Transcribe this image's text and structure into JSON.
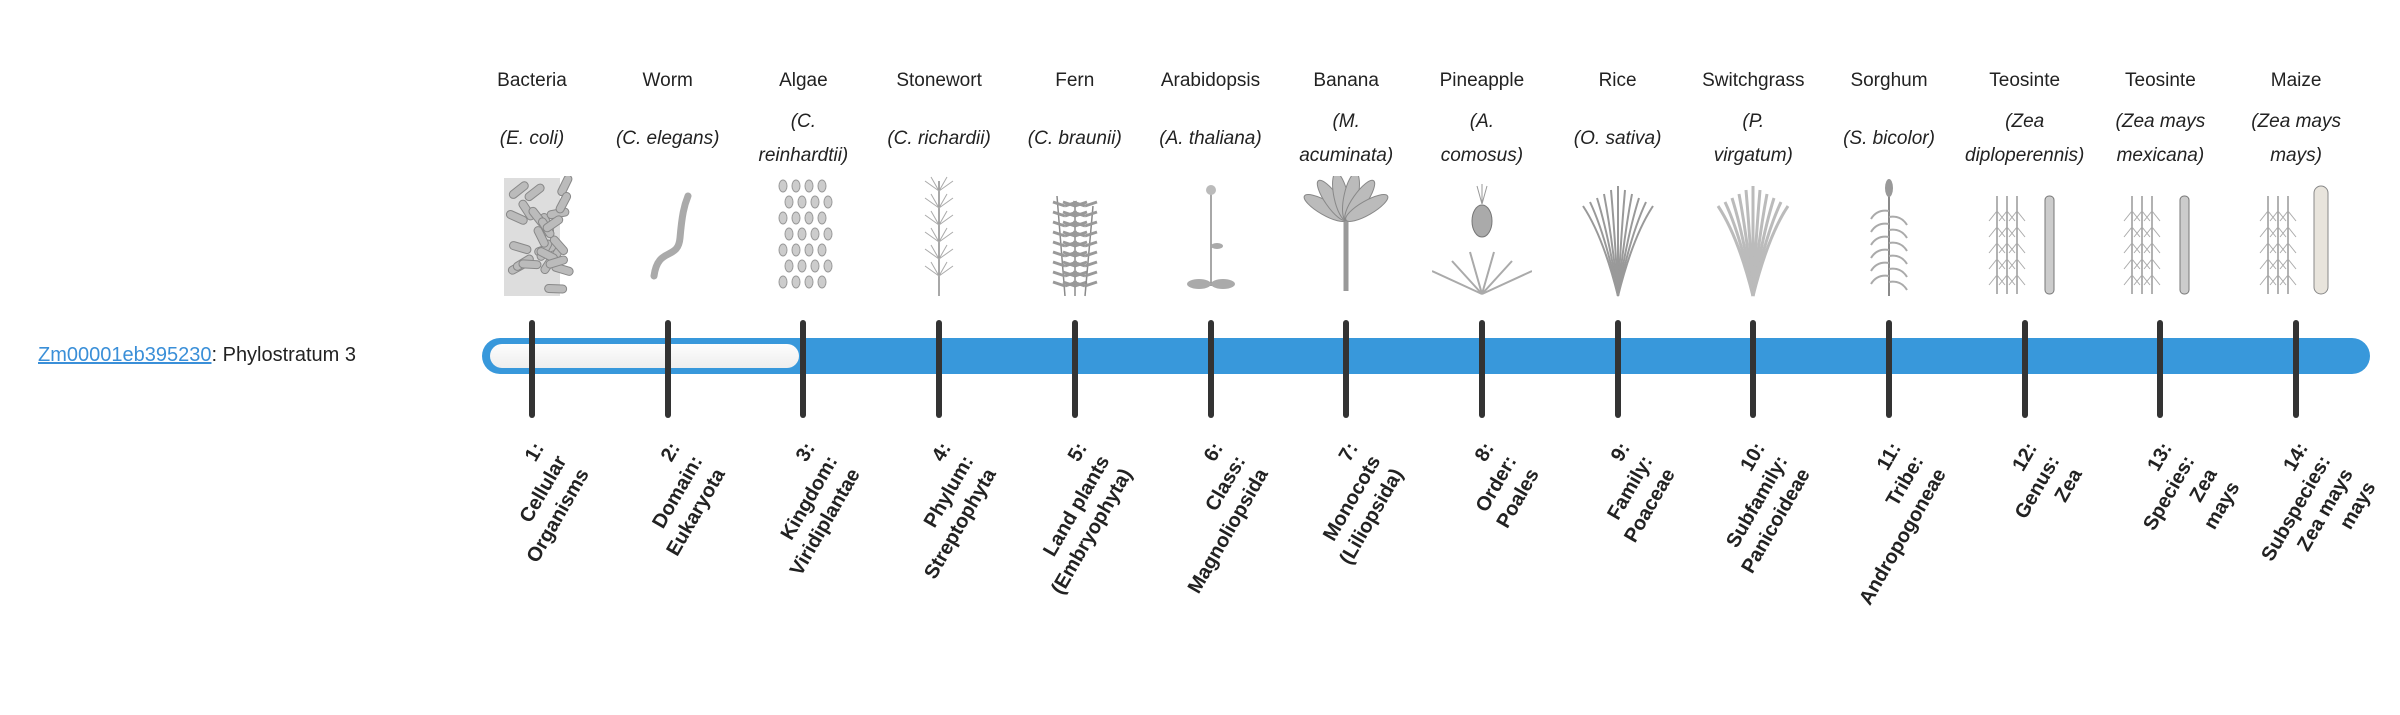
{
  "gene": {
    "id": "Zm00001eb395230",
    "suffix": ": Phylostratum 3"
  },
  "current_phylostratum": 3,
  "colors": {
    "bar": "#3898db",
    "track": "#f5f5f5",
    "tick": "#333333",
    "link": "#3a8fd8"
  },
  "organisms": [
    {
      "name": "Bacteria",
      "latin": [
        "(E. coli)"
      ],
      "icon": "bacteria-icon",
      "stratum": [
        "1:",
        "Cellular",
        "Organisms"
      ]
    },
    {
      "name": "Worm",
      "latin": [
        "(C. elegans)"
      ],
      "icon": "worm-icon",
      "stratum": [
        "2:",
        "Domain:",
        "Eukaryota"
      ]
    },
    {
      "name": "Algae",
      "latin": [
        "(C.",
        "reinhardtii)"
      ],
      "icon": "algae-icon",
      "stratum": [
        "3:",
        "Kingdom:",
        "Viridiplantae"
      ]
    },
    {
      "name": "Stonewort",
      "latin": [
        "(C. richardii)"
      ],
      "icon": "stonewort-icon",
      "stratum": [
        "4:",
        "Phylum:",
        "Streptophyta"
      ]
    },
    {
      "name": "Fern",
      "latin": [
        "(C. braunii)"
      ],
      "icon": "fern-icon",
      "stratum": [
        "5:",
        "Land plants",
        "(Embryophyta)"
      ]
    },
    {
      "name": "Arabidopsis",
      "latin": [
        "(A. thaliana)"
      ],
      "icon": "arabidopsis-icon",
      "stratum": [
        "6:",
        "Class:",
        "Magnoliopsida"
      ]
    },
    {
      "name": "Banana",
      "latin": [
        "(M.",
        "acuminata)"
      ],
      "icon": "banana-icon",
      "stratum": [
        "7:",
        "Monocots",
        "(Liliopsida)"
      ]
    },
    {
      "name": "Pineapple",
      "latin": [
        "(A.",
        "comosus)"
      ],
      "icon": "pineapple-icon",
      "stratum": [
        "8:",
        "Order:",
        "Poales"
      ]
    },
    {
      "name": "Rice",
      "latin": [
        "(O. sativa)"
      ],
      "icon": "rice-icon",
      "stratum": [
        "9:",
        "Family:",
        "Poaceae"
      ]
    },
    {
      "name": "Switchgrass",
      "latin": [
        "(P.",
        "virgatum)"
      ],
      "icon": "switchgrass-icon",
      "stratum": [
        "10:",
        "Subfamily:",
        "Panicoideae"
      ]
    },
    {
      "name": "Sorghum",
      "latin": [
        "(S. bicolor)"
      ],
      "icon": "sorghum-icon",
      "stratum": [
        "11:",
        "Tribe:",
        "Andropogoneae"
      ]
    },
    {
      "name": "Teosinte",
      "latin": [
        "(Zea",
        "diploperennis)"
      ],
      "icon": "teosinte-icon",
      "stratum": [
        "12:",
        "Genus:",
        "Zea"
      ]
    },
    {
      "name": "Teosinte",
      "latin": [
        "(Zea mays",
        "mexicana)"
      ],
      "icon": "teosinte-icon",
      "stratum": [
        "13:",
        "Species:",
        "Zea",
        "mays"
      ]
    },
    {
      "name": "Maize",
      "latin": [
        "(Zea mays",
        "mays)"
      ],
      "icon": "maize-icon",
      "stratum": [
        "14:",
        "Subspecies:",
        "Zea mays",
        "mays"
      ]
    }
  ]
}
